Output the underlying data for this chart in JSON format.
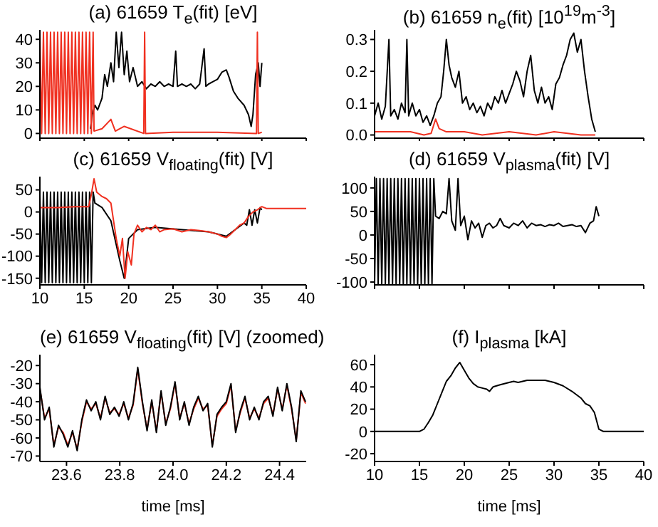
{
  "chart_data": [
    {
      "type": "line",
      "title": "(a) 61659 T$_{e}$(fit) [eV]",
      "xlim": [
        10,
        40
      ],
      "xticks": [
        10,
        15,
        20,
        25,
        30,
        35,
        40
      ],
      "ylim": [
        -2,
        44
      ],
      "yticks": [
        0,
        10,
        20,
        30,
        40
      ],
      "tick_labels": "y",
      "series": [
        {
          "color": "#000000",
          "x": [
            15.7,
            15.9,
            16.2,
            16.5,
            17,
            17.3,
            17.6,
            18,
            18.3,
            18.6,
            18.9,
            19.2,
            19.5,
            19.8,
            20.1,
            20.5,
            21,
            21.5,
            22,
            22.5,
            23,
            23.5,
            24,
            24.5,
            25,
            25.3,
            25.5,
            26,
            26.5,
            27,
            27.5,
            28,
            28.5,
            28.7,
            29,
            29.5,
            30,
            30.5,
            31,
            31.3,
            31.8,
            32.3,
            33,
            33.5,
            33.8,
            34,
            34.3,
            34.6,
            34.8,
            35
          ],
          "values": [
            2,
            8,
            12,
            10,
            15,
            25,
            20,
            30,
            22,
            43,
            28,
            43,
            25,
            35,
            22,
            28,
            20,
            22,
            19,
            21,
            20,
            22,
            20,
            21,
            20,
            35,
            20,
            21,
            20,
            21,
            19,
            21,
            36,
            20,
            21,
            22,
            23,
            26,
            27,
            24,
            18,
            15,
            12,
            8,
            3,
            8,
            25,
            30,
            20,
            30
          ]
        },
        {
          "color": "#f03020",
          "x": [
            10,
            10.2,
            10.4,
            10.6,
            10.8,
            11,
            11.2,
            11.4,
            11.6,
            11.8,
            12,
            12.2,
            12.4,
            12.6,
            12.8,
            13,
            13.2,
            13.4,
            13.6,
            13.8,
            14,
            14.2,
            14.4,
            14.6,
            14.8,
            15,
            15.2,
            15.4,
            15.6,
            15.8,
            16,
            16.1,
            17,
            18,
            18.5,
            19.5,
            21.7,
            21.8,
            21.9,
            25,
            30,
            34.4,
            34.5,
            34.6,
            35
          ],
          "values": [
            43,
            0,
            43,
            0,
            43,
            0,
            43,
            0,
            43,
            0,
            43,
            0,
            43,
            0,
            43,
            0,
            43,
            0,
            43,
            0,
            43,
            0,
            43,
            0,
            43,
            0,
            43,
            0,
            43,
            0,
            43,
            1,
            2,
            6,
            1,
            3,
            0,
            43,
            0,
            0.5,
            0.5,
            0,
            43,
            0,
            0.5
          ]
        }
      ]
    },
    {
      "type": "line",
      "title": "(b) 61659 n$_{e}$(fit) [10$^{19}$m$^{-3}$]",
      "xlim": [
        10,
        40
      ],
      "xticks": [
        10,
        15,
        20,
        25,
        30,
        35,
        40
      ],
      "ylim": [
        -0.01,
        0.33
      ],
      "yticks": [
        {
          "value": 0,
          "label": "0.0"
        },
        0.1,
        0.2,
        0.3
      ],
      "tick_labels": "y",
      "series": [
        {
          "color": "#000000",
          "x": [
            10,
            10.4,
            10.8,
            11.2,
            11.6,
            11.8,
            12.2,
            12.6,
            13,
            13.4,
            13.6,
            13.8,
            14.2,
            14.6,
            15,
            15.4,
            15.8,
            16.2,
            16.6,
            17,
            17.4,
            17.7,
            18,
            18.3,
            18.6,
            19,
            19.4,
            19.8,
            20.2,
            20.6,
            21,
            21.4,
            21.8,
            22.2,
            22.6,
            23,
            23.4,
            23.8,
            24.2,
            24.6,
            25,
            25.4,
            25.8,
            26.2,
            26.6,
            27,
            27.4,
            27.8,
            28.2,
            28.6,
            29,
            29.4,
            29.8,
            30.2,
            30.6,
            31,
            31.4,
            31.8,
            32.2,
            32.6,
            33,
            33.4,
            33.8,
            34.2,
            34.6
          ],
          "values": [
            0.06,
            0.1,
            0.05,
            0.09,
            0.3,
            0.06,
            0.08,
            0.05,
            0.1,
            0.07,
            0.3,
            0.06,
            0.1,
            0.06,
            0.08,
            0.04,
            0.06,
            0.03,
            0.06,
            0.1,
            0.12,
            0.2,
            0.3,
            0.22,
            0.18,
            0.15,
            0.2,
            0.1,
            0.12,
            0.08,
            0.1,
            0.07,
            0.09,
            0.06,
            0.1,
            0.08,
            0.12,
            0.1,
            0.14,
            0.1,
            0.13,
            0.16,
            0.2,
            0.17,
            0.12,
            0.2,
            0.25,
            0.14,
            0.1,
            0.15,
            0.1,
            0.12,
            0.08,
            0.16,
            0.18,
            0.22,
            0.25,
            0.3,
            0.32,
            0.26,
            0.3,
            0.2,
            0.12,
            0.05,
            0.01
          ]
        },
        {
          "color": "#f03020",
          "x": [
            10,
            12,
            14,
            15.5,
            16.3,
            16.8,
            17.2,
            18,
            20,
            22,
            25,
            28,
            30,
            33,
            34.6
          ],
          "values": [
            0.01,
            0.01,
            0.01,
            0,
            0.005,
            0.05,
            0.02,
            0.01,
            0.01,
            0,
            0.01,
            0,
            0.01,
            0,
            0
          ]
        }
      ]
    },
    {
      "type": "line",
      "title": "(c) 61659 V$_{floating}$(fit) [V]",
      "xlim": [
        10,
        40
      ],
      "xticks": [
        10,
        15,
        20,
        25,
        30,
        35,
        40
      ],
      "ylim": [
        -165,
        80
      ],
      "yticks": [
        -150,
        -100,
        -50,
        0,
        50
      ],
      "series": [
        {
          "color": "#000000",
          "x": [
            10,
            10.2,
            10.4,
            10.6,
            10.8,
            11,
            11.2,
            11.4,
            11.6,
            11.8,
            12,
            12.2,
            12.4,
            12.6,
            12.8,
            13,
            13.2,
            13.4,
            13.6,
            13.8,
            14,
            14.2,
            14.4,
            14.6,
            14.8,
            15,
            15.2,
            15.4,
            15.6,
            15.8,
            16,
            16.2,
            17,
            18,
            19,
            19.5,
            20,
            21,
            23,
            26,
            29,
            31,
            32,
            33,
            33.3,
            33.6,
            33.9,
            34.2,
            34.5,
            34.8,
            35
          ],
          "values": [
            40,
            -160,
            45,
            -160,
            45,
            -160,
            45,
            -160,
            45,
            -160,
            45,
            -160,
            45,
            -160,
            45,
            -160,
            45,
            -160,
            45,
            -160,
            45,
            -160,
            45,
            -160,
            45,
            -160,
            45,
            -160,
            45,
            -160,
            45,
            20,
            10,
            -20,
            -110,
            -150,
            -60,
            -40,
            -35,
            -40,
            -45,
            -55,
            -40,
            -25,
            -30,
            5,
            -30,
            5,
            -25,
            10,
            5
          ]
        },
        {
          "color": "#f03020",
          "x": [
            10,
            12,
            14,
            15.5,
            15.8,
            16.1,
            16.4,
            17,
            17.5,
            18,
            18.3,
            18.6,
            19,
            19.3,
            19.6,
            19.9,
            20.3,
            20.6,
            21,
            21.5,
            22,
            22.5,
            23,
            23.5,
            24,
            25,
            26,
            27,
            28,
            29,
            30,
            30.5,
            31,
            31.5,
            32,
            32.5,
            33,
            33.5,
            34,
            34.5,
            35,
            35.5,
            37,
            40
          ],
          "values": [
            10,
            10,
            12,
            12,
            40,
            75,
            45,
            35,
            30,
            20,
            -20,
            -60,
            -100,
            -60,
            -150,
            -90,
            -120,
            -50,
            -30,
            -45,
            -35,
            -40,
            -30,
            -45,
            -40,
            -38,
            -45,
            -40,
            -42,
            -45,
            -50,
            -55,
            -58,
            -50,
            -40,
            -30,
            -25,
            -10,
            0,
            5,
            12,
            8,
            8,
            8
          ]
        }
      ]
    },
    {
      "type": "line",
      "title": "(d) 61659 V$_{plasma}$(fit) [V]",
      "xlim": [
        10,
        40
      ],
      "xticks": [
        10,
        15,
        20,
        25,
        30,
        35,
        40
      ],
      "ylim": [
        -106,
        124
      ],
      "yticks": [
        -100,
        -50,
        0,
        50,
        100
      ],
      "tick_labels": "y",
      "series": [
        {
          "color": "#000000",
          "x": [
            10,
            10.2,
            10.4,
            10.6,
            10.8,
            11,
            11.2,
            11.4,
            11.6,
            11.8,
            12,
            12.2,
            12.4,
            12.6,
            12.8,
            13,
            13.2,
            13.4,
            13.6,
            13.8,
            14,
            14.2,
            14.4,
            14.6,
            14.8,
            15,
            15.2,
            15.4,
            15.6,
            15.8,
            16,
            16.2,
            16.4,
            16.6,
            16.8,
            17.2,
            17.6,
            18,
            18.3,
            18.6,
            19,
            19.3,
            19.6,
            20,
            20.4,
            20.8,
            21.2,
            21.6,
            22,
            22.4,
            22.8,
            23.2,
            23.6,
            24,
            24.4,
            25,
            25.5,
            26,
            26.5,
            27,
            27.5,
            28,
            28.5,
            29,
            29.5,
            30,
            30.5,
            31,
            31.5,
            32,
            32.5,
            33,
            33.5,
            34,
            34.4,
            34.7,
            35
          ],
          "values": [
            -105,
            120,
            -105,
            120,
            -105,
            120,
            -105,
            120,
            -105,
            120,
            -105,
            120,
            -105,
            120,
            -105,
            120,
            -105,
            120,
            -105,
            120,
            -105,
            120,
            -105,
            120,
            -105,
            120,
            -105,
            120,
            -105,
            120,
            -105,
            120,
            -105,
            120,
            40,
            35,
            50,
            45,
            120,
            30,
            10,
            120,
            20,
            40,
            -10,
            30,
            15,
            25,
            -5,
            20,
            25,
            15,
            20,
            35,
            20,
            15,
            25,
            20,
            30,
            15,
            25,
            20,
            22,
            18,
            22,
            20,
            25,
            18,
            20,
            22,
            18,
            20,
            5,
            25,
            30,
            60,
            40
          ]
        }
      ]
    },
    {
      "type": "line",
      "title": "(e) 61659 V$_{floating}$(fit) [V] (zoomed)",
      "xlabel": "time [ms]",
      "xlim": [
        23.5,
        24.5
      ],
      "xticks": [
        23.6,
        23.8,
        {
          "value": 24,
          "label": "24.0"
        },
        24.2,
        24.4
      ],
      "ylim": [
        -73,
        -14
      ],
      "yticks": [
        -70,
        -60,
        -50,
        -40,
        -30,
        -20
      ],
      "x": [
        23.5,
        23.5175,
        23.535,
        23.5525,
        23.57,
        23.5875,
        23.605,
        23.6225,
        23.64,
        23.6575,
        23.675,
        23.6925,
        23.71,
        23.7275,
        23.745,
        23.7625,
        23.78,
        23.7975,
        23.815,
        23.8325,
        23.85,
        23.8675,
        23.885,
        23.9025,
        23.92,
        23.9375,
        23.955,
        23.9725,
        23.99,
        24.0075,
        24.025,
        24.0425,
        24.06,
        24.0775,
        24.095,
        24.1125,
        24.13,
        24.1475,
        24.165,
        24.1825,
        24.2,
        24.2175,
        24.235,
        24.2525,
        24.27,
        24.2875,
        24.305,
        24.3225,
        24.34,
        24.3575,
        24.375,
        24.3925,
        24.41,
        24.4275,
        24.445,
        24.4625,
        24.48,
        24.4975
      ],
      "series": [
        {
          "color": "#f03020",
          "values": [
            -33,
            -49,
            -44,
            -64,
            -54,
            -57,
            -64,
            -57,
            -66,
            -51,
            -40,
            -44,
            -41,
            -49,
            -38,
            -46,
            -44,
            -47,
            -41,
            -49,
            -42,
            -22,
            -41,
            -55,
            -40,
            -56,
            -35,
            -52,
            -44,
            -30,
            -49,
            -41,
            -52,
            -44,
            -38,
            -44,
            -42,
            -64,
            -48,
            -44,
            -41,
            -31,
            -56,
            -46,
            -38,
            -49,
            -44,
            -49,
            -41,
            -38,
            -47,
            -33,
            -44,
            -31,
            -44,
            -61,
            -35,
            -41
          ]
        },
        {
          "color": "#000000",
          "values": [
            -32,
            -50,
            -43,
            -65,
            -53,
            -58,
            -65,
            -56,
            -67,
            -50,
            -39,
            -45,
            -40,
            -50,
            -37,
            -47,
            -43,
            -48,
            -40,
            -50,
            -41,
            -21,
            -40,
            -56,
            -39,
            -57,
            -34,
            -53,
            -43,
            -29,
            -50,
            -40,
            -53,
            -43,
            -37,
            -45,
            -41,
            -65,
            -47,
            -43,
            -40,
            -30,
            -57,
            -45,
            -37,
            -50,
            -43,
            -50,
            -40,
            -37,
            -48,
            -32,
            -45,
            -30,
            -43,
            -62,
            -34,
            -40
          ]
        }
      ]
    },
    {
      "type": "line",
      "title": "(f) I$_{plasma}$ [kA]",
      "xlabel": "time [ms]",
      "xlim": [
        10,
        40
      ],
      "xticks": [
        10,
        15,
        20,
        25,
        30,
        35,
        40
      ],
      "ylim": [
        -27,
        69
      ],
      "yticks": [
        -20,
        0,
        20,
        40,
        60
      ],
      "series": [
        {
          "color": "#000000",
          "x": [
            10,
            15,
            15.5,
            16,
            16.5,
            17,
            17.5,
            18,
            18.5,
            19,
            19.5,
            20,
            20.5,
            21,
            21.5,
            22,
            22.5,
            22.8,
            23.2,
            24,
            25,
            25.5,
            26,
            27,
            28,
            29,
            30,
            31,
            32,
            33,
            33.5,
            34,
            34.5,
            34.8,
            35,
            35.5,
            40
          ],
          "values": [
            0,
            0,
            2,
            8,
            15,
            25,
            35,
            45,
            50,
            57,
            62,
            55,
            48,
            43,
            40,
            39,
            38,
            36,
            40,
            42,
            44,
            45,
            44,
            46,
            46,
            46,
            44,
            41,
            36,
            30,
            25,
            23,
            17,
            8,
            2,
            0,
            0
          ]
        }
      ]
    }
  ]
}
